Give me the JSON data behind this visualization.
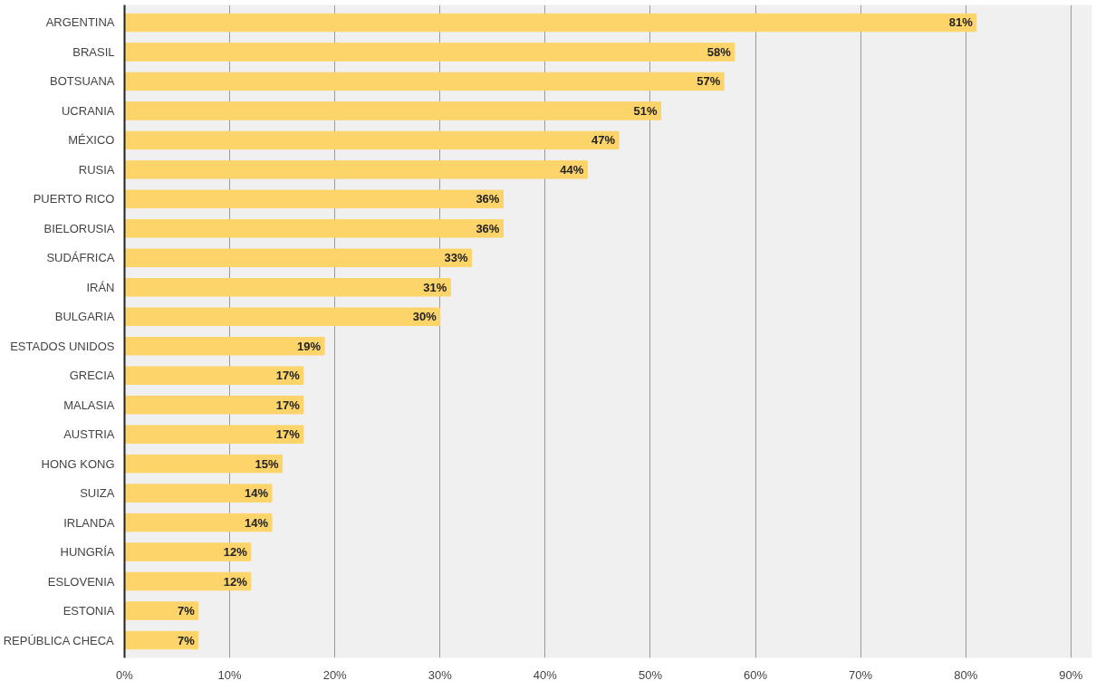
{
  "chart_data": {
    "type": "bar",
    "orientation": "horizontal",
    "categories": [
      "ARGENTINA",
      "BRASIL",
      "BOTSUANA",
      "UCRANIA",
      "MÉXICO",
      "RUSIA",
      "PUERTO RICO",
      "BIELORUSIA",
      "SUDÁFRICA",
      "IRÁN",
      "BULGARIA",
      "ESTADOS UNIDOS",
      "GRECIA",
      "MALASIA",
      "AUSTRIA",
      "HONG KONG",
      "SUIZA",
      "IRLANDA",
      "HUNGRÍA",
      "ESLOVENIA",
      "ESTONIA",
      "REPÚBLICA CHECA"
    ],
    "values": [
      81,
      58,
      57,
      51,
      47,
      44,
      36,
      36,
      33,
      31,
      30,
      19,
      17,
      17,
      17,
      15,
      14,
      14,
      12,
      12,
      7,
      7
    ],
    "value_labels": [
      "81%",
      "58%",
      "57%",
      "51%",
      "47%",
      "44%",
      "36%",
      "36%",
      "33%",
      "31%",
      "30%",
      "19%",
      "17%",
      "17%",
      "17%",
      "15%",
      "14%",
      "14%",
      "12%",
      "12%",
      "7%",
      "7%"
    ],
    "color": "#fdd46a",
    "xlim": [
      0,
      92
    ],
    "xticks": [
      {
        "value": 0,
        "label": "0%"
      },
      {
        "value": 10,
        "label": "10%"
      },
      {
        "value": 20,
        "label": "20%"
      },
      {
        "value": 30,
        "label": "30%"
      },
      {
        "value": 40,
        "label": "40%"
      },
      {
        "value": 50,
        "label": "50%"
      },
      {
        "value": 60,
        "label": "60%"
      },
      {
        "value": 70,
        "label": "70%"
      },
      {
        "value": 80,
        "label": "80%"
      },
      {
        "value": 90,
        "label": "90%"
      }
    ],
    "grid": "x"
  }
}
